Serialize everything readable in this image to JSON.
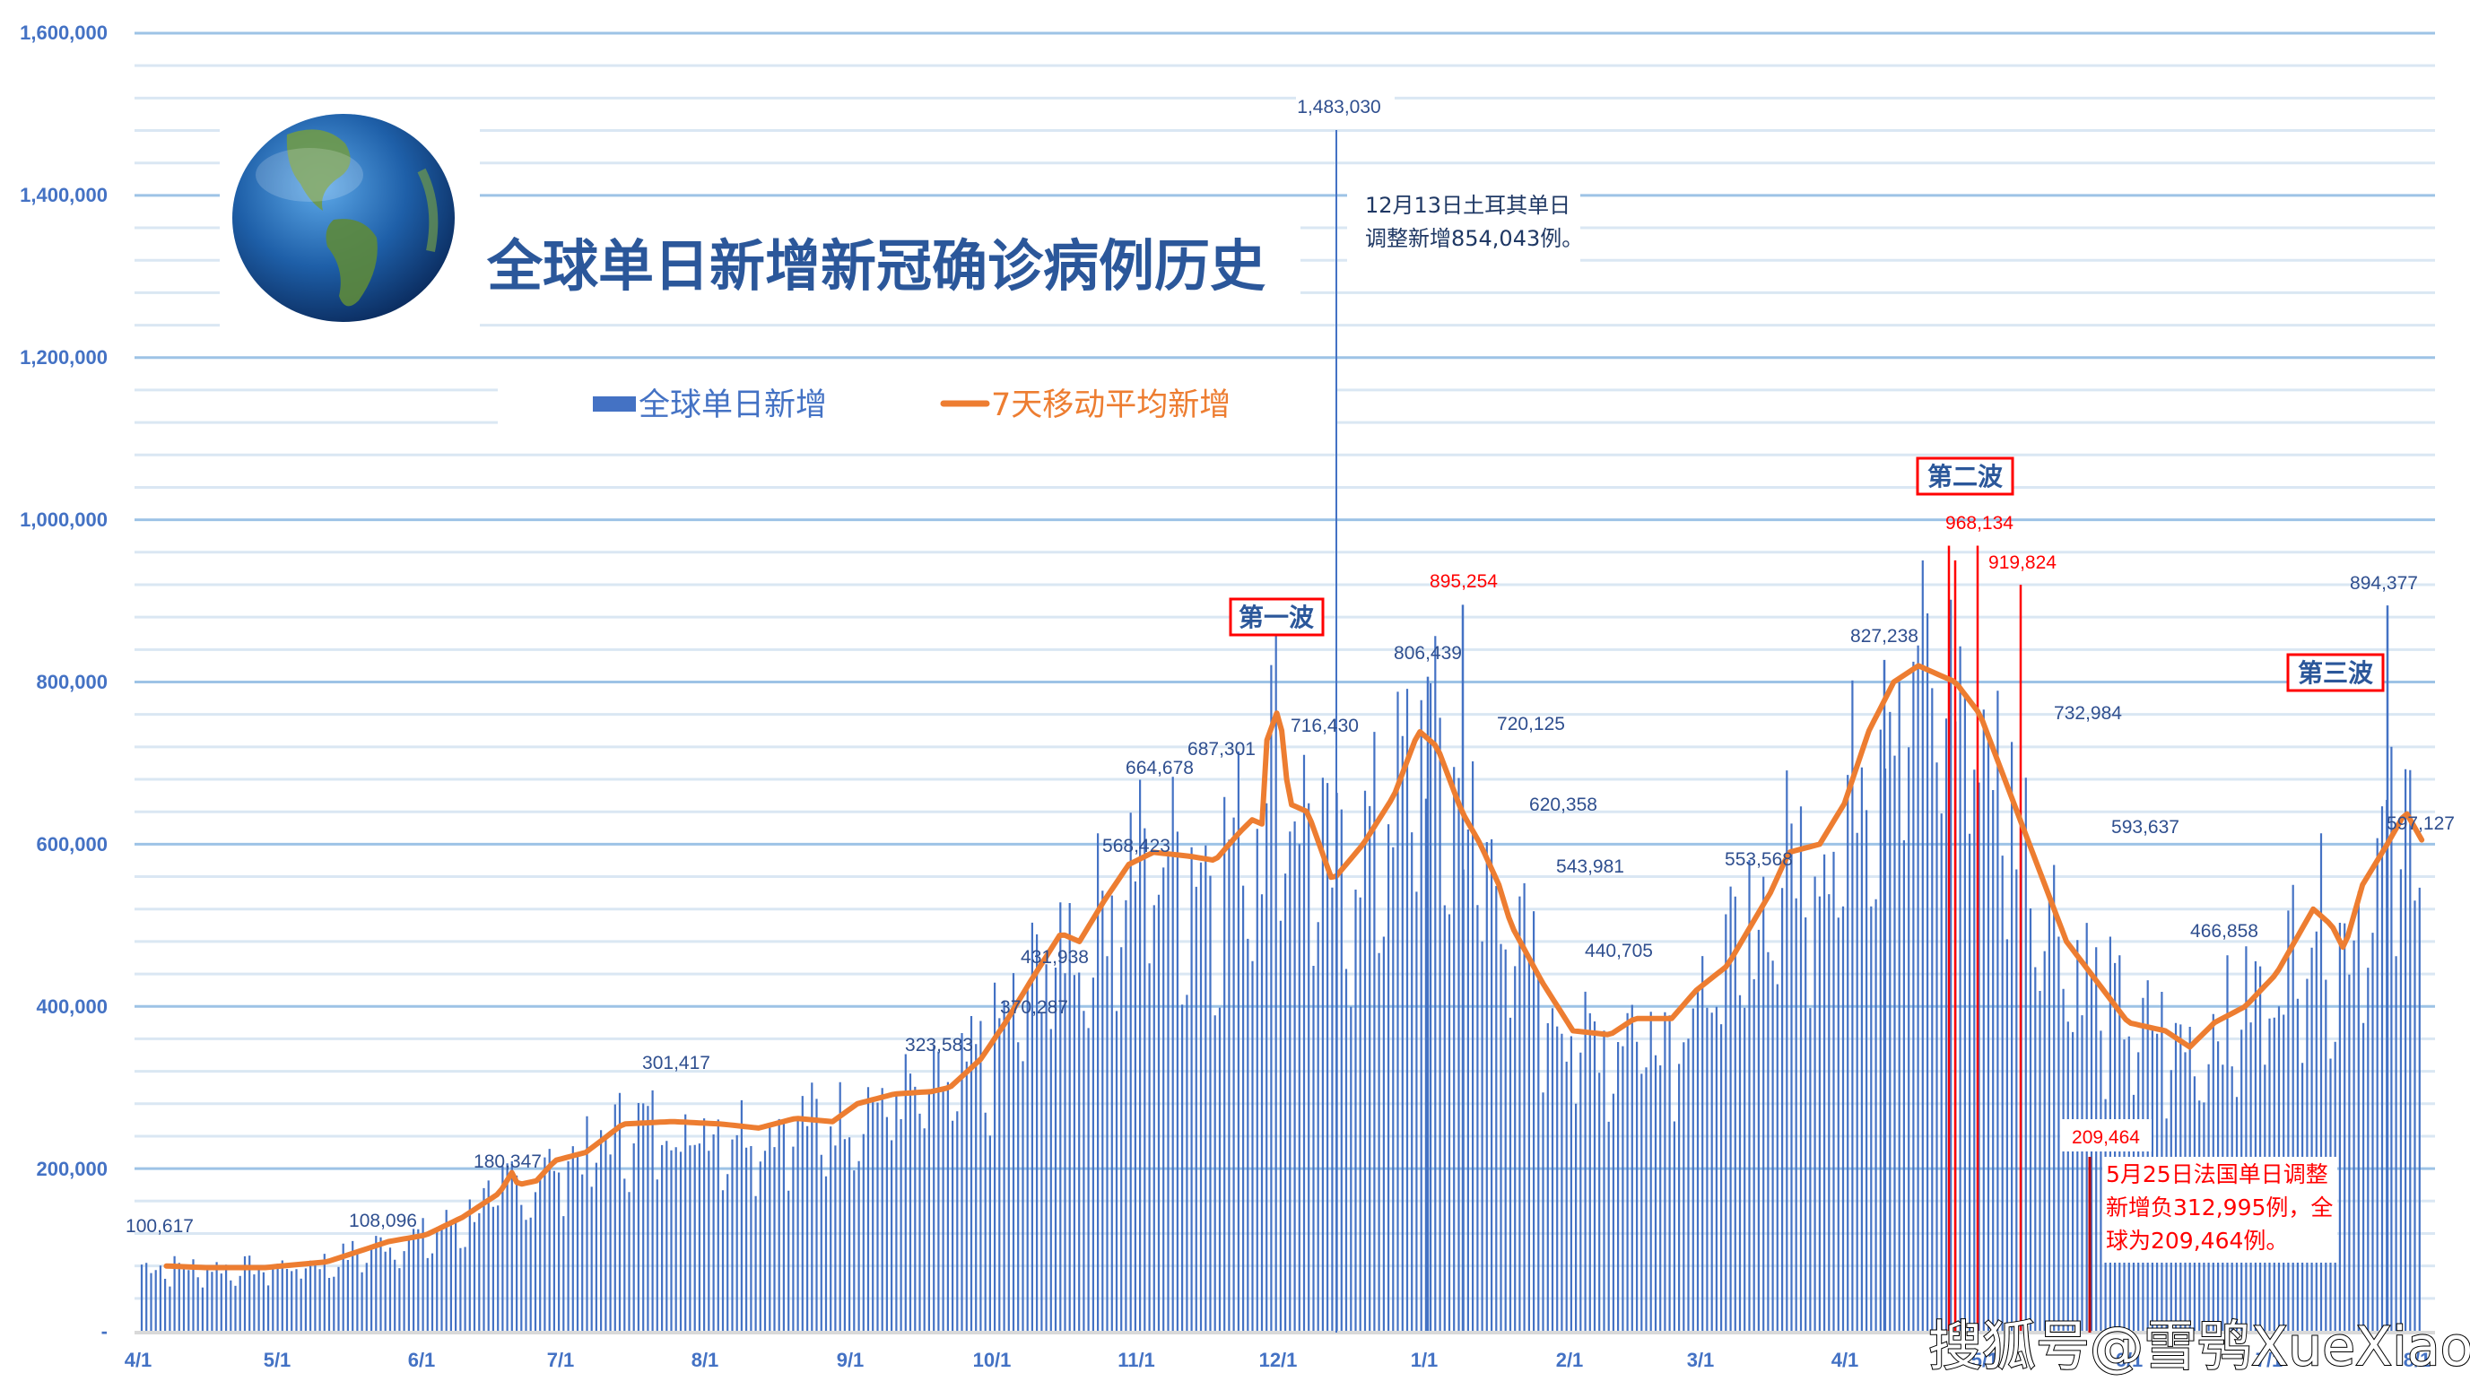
{
  "chart_data": {
    "type": "bar",
    "title": "全球单日新增新冠确诊病例历史",
    "xlabel": "",
    "ylabel": "",
    "ylim": [
      0,
      1600000
    ],
    "grid": true,
    "legend_position": "top",
    "y_ticks": [
      "-",
      "200,000",
      "400,000",
      "600,000",
      "800,000",
      "1,000,000",
      "1,200,000",
      "1,400,000",
      "1,600,000"
    ],
    "x_ticks": [
      "4/1",
      "5/1",
      "6/1",
      "7/1",
      "8/1",
      "9/1",
      "10/1",
      "11/1",
      "12/1",
      "1/1",
      "2/1",
      "3/1",
      "4/1",
      "5/1",
      "6/1",
      "7/1",
      "8/1"
    ],
    "series": [
      {
        "name": "全球单日新增",
        "type": "bar",
        "color": "#4472c4"
      },
      {
        "name": "7天移动平均新增",
        "type": "line",
        "color": "#ed7d31"
      }
    ],
    "monthly_moving_average": {
      "x": [
        "4/1",
        "5/1",
        "6/1",
        "7/1",
        "8/1",
        "9/1",
        "10/1",
        "11/1",
        "12/1",
        "1/1",
        "2/1",
        "3/1",
        "4/1",
        "5/1",
        "6/1",
        "7/1",
        "8/1"
      ],
      "values": [
        80000,
        80000,
        110000,
        175000,
        255000,
        265000,
        295000,
        490000,
        590000,
        580000,
        490000,
        380000,
        600000,
        810000,
        480000,
        380000,
        600000
      ]
    },
    "annotated_points": [
      {
        "label": "100,617",
        "value": 100617,
        "color": "#2f4f8f"
      },
      {
        "label": "108,096",
        "value": 108096,
        "color": "#2f4f8f"
      },
      {
        "label": "180,347",
        "value": 180347,
        "color": "#2f4f8f"
      },
      {
        "label": "301,417",
        "value": 301417,
        "color": "#2f4f8f"
      },
      {
        "label": "323,583",
        "value": 323583,
        "color": "#2f4f8f"
      },
      {
        "label": "370,287",
        "value": 370287,
        "color": "#2f4f8f"
      },
      {
        "label": "431,938",
        "value": 431938,
        "color": "#2f4f8f"
      },
      {
        "label": "568,423",
        "value": 568423,
        "color": "#2f4f8f"
      },
      {
        "label": "664,678",
        "value": 664678,
        "color": "#2f4f8f"
      },
      {
        "label": "687,301",
        "value": 687301,
        "color": "#2f4f8f"
      },
      {
        "label": "716,430",
        "value": 716430,
        "color": "#2f4f8f"
      },
      {
        "label": "1,483,030",
        "value": 1483030,
        "color": "#2f4f8f"
      },
      {
        "label": "806,439",
        "value": 806439,
        "color": "#2f4f8f"
      },
      {
        "label": "895,254",
        "value": 895254,
        "color": "#ff0000"
      },
      {
        "label": "720,125",
        "value": 720125,
        "color": "#2f4f8f"
      },
      {
        "label": "620,358",
        "value": 620358,
        "color": "#2f4f8f"
      },
      {
        "label": "543,981",
        "value": 543981,
        "color": "#2f4f8f"
      },
      {
        "label": "440,705",
        "value": 440705,
        "color": "#2f4f8f"
      },
      {
        "label": "553,568",
        "value": 553568,
        "color": "#2f4f8f"
      },
      {
        "label": "827,238",
        "value": 827238,
        "color": "#2f4f8f"
      },
      {
        "label": "968,134",
        "value": 968134,
        "color": "#ff0000"
      },
      {
        "label": "919,824",
        "value": 919824,
        "color": "#ff0000"
      },
      {
        "label": "732,984",
        "value": 732984,
        "color": "#2f4f8f"
      },
      {
        "label": "593,637",
        "value": 593637,
        "color": "#2f4f8f"
      },
      {
        "label": "209,464",
        "value": 209464,
        "color": "#ff0000"
      },
      {
        "label": "466,858",
        "value": 466858,
        "color": "#2f4f8f"
      },
      {
        "label": "894,377",
        "value": 894377,
        "color": "#2f4f8f"
      },
      {
        "label": "597,127",
        "value": 597127,
        "color": "#2f4f8f"
      }
    ],
    "annotations": [
      "第一波",
      "第二波",
      "第三波",
      "12月13日土耳其单日调整新增854,043例。",
      "5月25日法国单日调整新增负312,995例，全球为209,464例。"
    ]
  },
  "title": "全球单日新增新冠确诊病例历史",
  "legend": {
    "bar_label": "全球单日新增",
    "line_label": "7天移动平均新增"
  },
  "y_axis": {
    "ticks": [
      "-",
      "200,000",
      "400,000",
      "600,000",
      "800,000",
      "1,000,000",
      "1,200,000",
      "1,400,000",
      "1,600,000"
    ]
  },
  "x_axis": {
    "ticks": [
      "4/1",
      "5/1",
      "6/1",
      "7/1",
      "8/1",
      "9/1",
      "10/1",
      "11/1",
      "12/1",
      "1/1",
      "2/1",
      "3/1",
      "4/1",
      "5/1",
      "6/1",
      "7/1",
      "8/1"
    ]
  },
  "waves": {
    "first": "第一波",
    "second": "第二波",
    "third": "第三波"
  },
  "notes": {
    "turkey_line1": "12月13日土耳其单日",
    "turkey_line2": "调整新增854,043例。",
    "france_line1": "5月25日法国单日调整",
    "france_line2": "新增负312,995例，全",
    "france_line3": "球为209,464例。"
  },
  "labels": {
    "l100617": "100,617",
    "l108096": "108,096",
    "l180347": "180,347",
    "l301417": "301,417",
    "l323583": "323,583",
    "l370287": "370,287",
    "l431938": "431,938",
    "l568423": "568,423",
    "l664678": "664,678",
    "l687301": "687,301",
    "l716430": "716,430",
    "l1483030": "1,483,030",
    "l806439": "806,439",
    "l895254": "895,254",
    "l720125": "720,125",
    "l620358": "620,358",
    "l543981": "543,981",
    "l440705": "440,705",
    "l553568": "553,568",
    "l827238": "827,238",
    "l968134": "968,134",
    "l919824": "919,824",
    "l732984": "732,984",
    "l593637": "593,637",
    "l209464": "209,464",
    "l466858": "466,858",
    "l894377": "894,377",
    "l597127": "597,127"
  },
  "watermark": "搜狐号@雪鸮XueXiao",
  "colors": {
    "bar": "#4472c4",
    "line": "#ed7d31",
    "highlight": "#ff0000",
    "title": "#2b579a",
    "grid_major": "#9dc3e6",
    "grid_minor": "#dae7f3"
  }
}
